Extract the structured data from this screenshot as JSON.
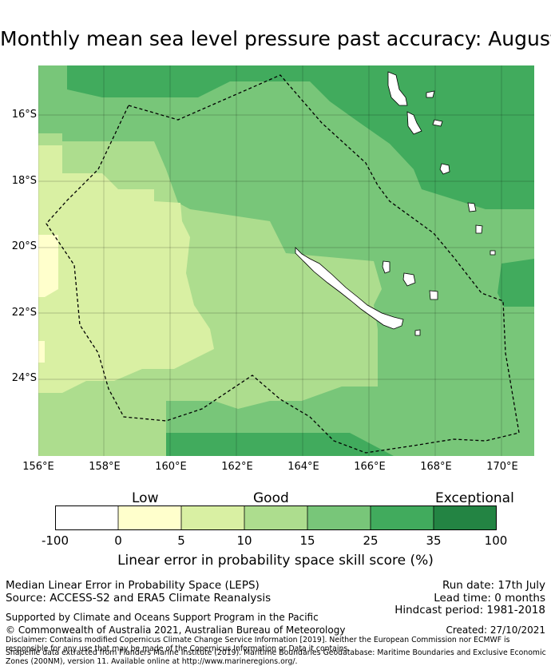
{
  "title": "Monthly mean sea level pressure past accuracy: August",
  "map": {
    "lon_labels": [
      "156°E",
      "158°E",
      "160°E",
      "162°E",
      "164°E",
      "166°E",
      "168°E",
      "170°E"
    ],
    "lat_labels": [
      "16°S",
      "18°S",
      "20°S",
      "22°S",
      "24°S"
    ],
    "lon_range": [
      156,
      171
    ],
    "lat_range": [
      -14.5,
      -26.3
    ],
    "colors": {
      "very_light": "#ffffcc",
      "light": "#d9f0a3",
      "mid": "#addd8e",
      "good": "#78c679",
      "high": "#41ab5d",
      "land": "#ffffff",
      "boundary": "#000000"
    }
  },
  "colorbar": {
    "categories": [
      "Low",
      "Good",
      "Exceptional"
    ],
    "ticks": [
      "-100",
      "0",
      "5",
      "10",
      "15",
      "25",
      "35",
      "100"
    ],
    "colors": [
      "#ffffff",
      "#ffffcc",
      "#d9f0a3",
      "#addd8e",
      "#78c679",
      "#41ab5d",
      "#238443"
    ],
    "label": "Linear error in probability space skill score (%)"
  },
  "info": {
    "line1": "Median Linear Error in Probability Space (LEPS)",
    "line2": "Source: ACCESS-S2 and ERA5 Climate Reanalysis",
    "run_date": "Run date: 17th July",
    "lead_time": "Lead time: 0 months",
    "hindcast": "Hindcast period: 1981-2018",
    "supported": "Supported by Climate and Oceans Support Program in the Pacific",
    "copyright": "© Commonwealth of Australia 2021, Australian Bureau of Meteorology",
    "created": "Created: 27/10/2021",
    "disclaimer": "Disclaimer: Contains modified Copernicus Climate Change Service Information [2019]. Neither the European Commission nor ECMWF is responsible for any use that may be made of the Copernicus Information or Data it contains.",
    "shapefile": "Shapefile data extracted from Flanders Marine Institute (2019). Maritime Boundaries Geodatabase: Maritime Boundaries and Exclusive Economic Zones (200NM), version 11. Available online at http://www.marineregions.org/."
  }
}
